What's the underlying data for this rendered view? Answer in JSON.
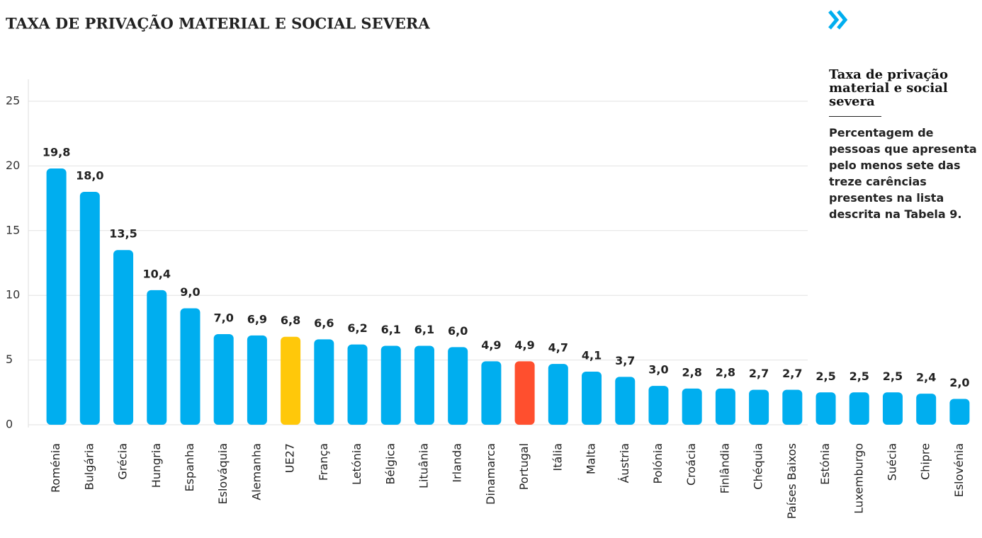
{
  "chart_data": {
    "type": "bar",
    "title": "TAXA DE PRIVAÇÃO MATERIAL E SOCIAL SEVERA",
    "categories": [
      "Roménia",
      "Bulgária",
      "Grécia",
      "Hungria",
      "Espanha",
      "Eslováquia",
      "Alemanha",
      "UE27",
      "França",
      "Letónia",
      "Bélgica",
      "Lituânia",
      "Irlanda",
      "Dinamarca",
      "Portugal",
      "Itália",
      "Malta",
      "Áustria",
      "Polónia",
      "Croácia",
      "Finlândia",
      "Chéquia",
      "Países Baixos",
      "Estónia",
      "Luxemburgo",
      "Suécia",
      "Chipre",
      "Eslovénia"
    ],
    "values": [
      19.8,
      18.0,
      13.5,
      10.4,
      9.0,
      7.0,
      6.9,
      6.8,
      6.6,
      6.2,
      6.1,
      6.1,
      6.0,
      4.9,
      4.9,
      4.7,
      4.1,
      3.7,
      3.0,
      2.8,
      2.8,
      2.7,
      2.7,
      2.5,
      2.5,
      2.5,
      2.4,
      2.0
    ],
    "value_labels": [
      "19,8",
      "18,0",
      "13,5",
      "10,4",
      "9,0",
      "7,0",
      "6,9",
      "6,8",
      "6,6",
      "6,2",
      "6,1",
      "6,1",
      "6,0",
      "4,9",
      "4,9",
      "4,7",
      "4,1",
      "3,7",
      "3,0",
      "2,8",
      "2,8",
      "2,7",
      "2,7",
      "2,5",
      "2,5",
      "2,5",
      "2,4",
      "2,0"
    ],
    "colors": [
      "#00aeef",
      "#00aeef",
      "#00aeef",
      "#00aeef",
      "#00aeef",
      "#00aeef",
      "#00aeef",
      "#ffc80a",
      "#00aeef",
      "#00aeef",
      "#00aeef",
      "#00aeef",
      "#00aeef",
      "#00aeef",
      "#ff4f2e",
      "#00aeef",
      "#00aeef",
      "#00aeef",
      "#00aeef",
      "#00aeef",
      "#00aeef",
      "#00aeef",
      "#00aeef",
      "#00aeef",
      "#00aeef",
      "#00aeef",
      "#00aeef",
      "#00aeef"
    ],
    "ylim": [
      0,
      25
    ],
    "yticks": [
      0,
      5,
      10,
      15,
      20,
      25
    ],
    "grid": true
  },
  "sidebar": {
    "title": "Taxa de privação material e social severa",
    "text": "Percentagem de pessoas que apresenta pelo menos sete das treze carências presentes na lista descrita na Tabela 9."
  }
}
